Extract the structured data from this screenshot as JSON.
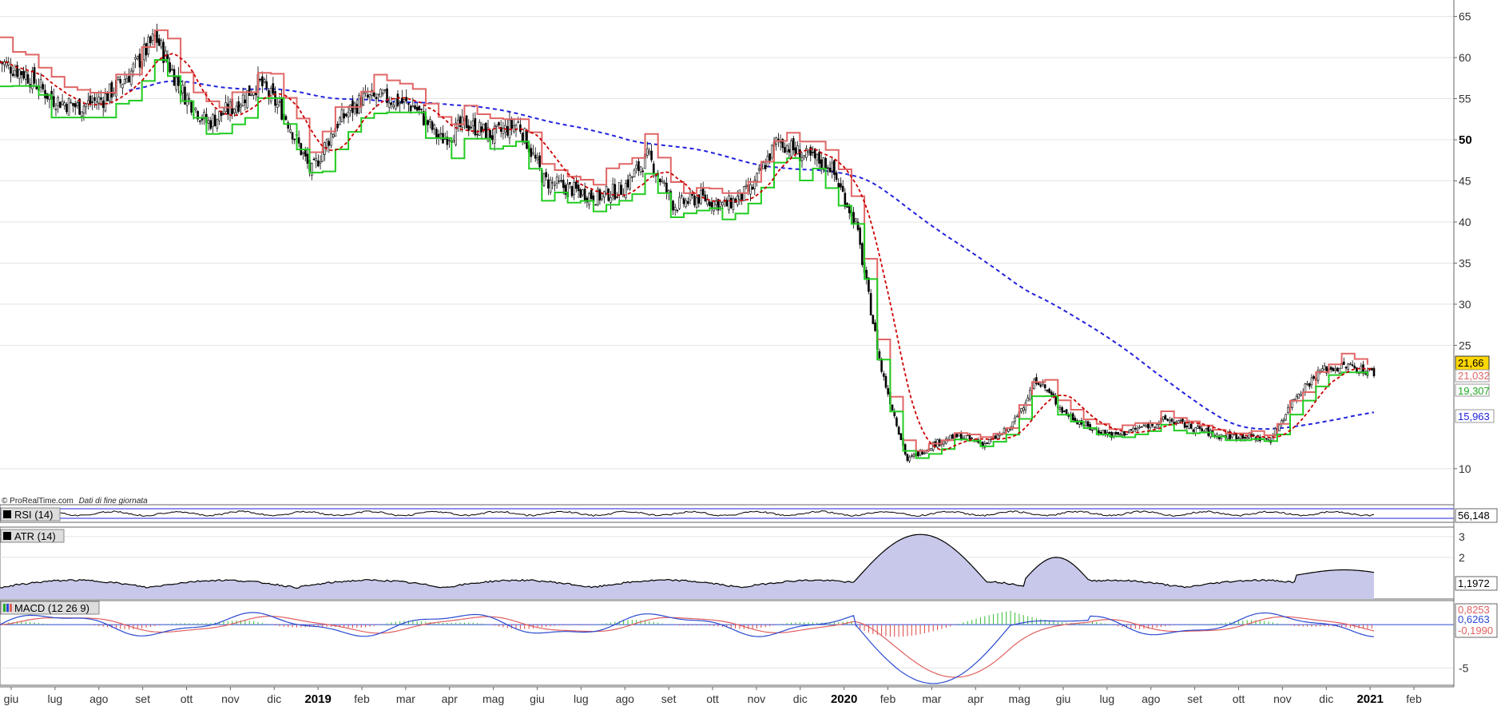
{
  "source": {
    "brand": "© ProRealTime.com",
    "note": "Dati di fine giornata"
  },
  "chart_data": [
    {
      "type": "candlestick",
      "panel": "price",
      "ylim": [
        6,
        67
      ],
      "yticks": [
        {
          "value": 65,
          "label": "65"
        },
        {
          "value": 60,
          "label": "60"
        },
        {
          "value": 55,
          "label": "55"
        },
        {
          "value": 50,
          "label": "50",
          "bold": true
        },
        {
          "value": 45,
          "label": "45"
        },
        {
          "value": 40,
          "label": "40"
        },
        {
          "value": 35,
          "label": "35"
        },
        {
          "value": 30,
          "label": "30"
        },
        {
          "value": 25,
          "label": "25"
        },
        {
          "value": 10,
          "label": "10"
        }
      ],
      "grid": true,
      "close_path": [
        [
          0,
          59.5
        ],
        [
          1,
          58
        ],
        [
          2,
          55
        ],
        [
          3,
          54
        ],
        [
          4,
          55
        ],
        [
          5,
          58
        ],
        [
          6,
          62.5
        ],
        [
          7,
          56
        ],
        [
          8,
          52
        ],
        [
          9,
          54
        ],
        [
          10,
          57
        ],
        [
          11,
          53
        ],
        [
          12,
          46
        ],
        [
          13,
          52
        ],
        [
          14,
          55
        ],
        [
          15,
          55
        ],
        [
          16,
          54
        ],
        [
          17,
          50
        ],
        [
          18,
          52
        ],
        [
          19,
          50.5
        ],
        [
          20,
          52
        ],
        [
          21,
          45
        ],
        [
          22,
          44
        ],
        [
          23,
          43
        ],
        [
          24,
          44
        ],
        [
          25,
          48
        ],
        [
          26,
          42
        ],
        [
          27,
          43
        ],
        [
          28,
          42
        ],
        [
          29,
          44
        ],
        [
          30,
          50
        ],
        [
          31,
          48
        ],
        [
          32,
          47
        ],
        [
          33,
          40
        ],
        [
          34,
          22
        ],
        [
          35,
          11
        ],
        [
          36,
          13
        ],
        [
          37,
          14
        ],
        [
          38,
          13
        ],
        [
          39,
          15
        ],
        [
          40,
          21
        ],
        [
          41,
          17
        ],
        [
          42,
          15
        ],
        [
          43,
          14
        ],
        [
          44,
          15
        ],
        [
          45,
          16
        ],
        [
          46,
          15
        ],
        [
          47,
          14
        ],
        [
          48,
          14
        ],
        [
          49,
          13.5
        ],
        [
          50,
          19
        ],
        [
          51,
          22
        ],
        [
          52,
          22.5
        ],
        [
          53,
          21.66
        ]
      ],
      "series": [
        {
          "name": "Price",
          "color": "#000000"
        },
        {
          "name": "Trailing stop (resistance)",
          "color": "#e06666",
          "last": 21.032,
          "last_label": "21,032"
        },
        {
          "name": "Moving average",
          "color": "#cc0000",
          "style": "dashed"
        },
        {
          "name": "Trailing stop (support)",
          "color": "#22cc22",
          "last": 19.307,
          "last_label": "19,307"
        },
        {
          "name": "Long moving average",
          "color": "#2222dd",
          "style": "dashed",
          "last": 15.963,
          "last_label": "15,963"
        }
      ],
      "last_price": 21.66,
      "last_price_label": "21,66"
    },
    {
      "type": "line",
      "panel": "rsi",
      "title": "RSI (14)",
      "last_label": "56,148"
    },
    {
      "type": "area",
      "panel": "atr",
      "title": "ATR (14)",
      "ylim": [
        0,
        3.3
      ],
      "yticks": [
        {
          "value": 3,
          "label": "3"
        },
        {
          "value": 2,
          "label": "2"
        }
      ],
      "last": 1.1972,
      "last_label": "1,1972",
      "peak": 3.1
    },
    {
      "type": "line",
      "panel": "macd",
      "title": "MACD (12 26 9)",
      "ylim": [
        -7,
        2.5
      ],
      "yticks": [
        {
          "value": -5,
          "label": "-5"
        }
      ],
      "last_labels": [
        "0,8253",
        "0,6263",
        "-0,1990"
      ],
      "min": -6.8
    }
  ],
  "x_axis": {
    "months": [
      {
        "label": "giu",
        "pos": 0
      },
      {
        "label": "lug",
        "pos": 1
      },
      {
        "label": "ago",
        "pos": 2
      },
      {
        "label": "set",
        "pos": 3
      },
      {
        "label": "ott",
        "pos": 4
      },
      {
        "label": "nov",
        "pos": 5
      },
      {
        "label": "dic",
        "pos": 6
      },
      {
        "label": "2019",
        "pos": 7,
        "bold": true
      },
      {
        "label": "feb",
        "pos": 8
      },
      {
        "label": "mar",
        "pos": 9
      },
      {
        "label": "apr",
        "pos": 10
      },
      {
        "label": "mag",
        "pos": 11
      },
      {
        "label": "giu",
        "pos": 12
      },
      {
        "label": "lug",
        "pos": 13
      },
      {
        "label": "ago",
        "pos": 14
      },
      {
        "label": "set",
        "pos": 15
      },
      {
        "label": "ott",
        "pos": 16
      },
      {
        "label": "nov",
        "pos": 17
      },
      {
        "label": "dic",
        "pos": 18
      },
      {
        "label": "2020",
        "pos": 19,
        "bold": true
      },
      {
        "label": "feb",
        "pos": 20
      },
      {
        "label": "mar",
        "pos": 21
      },
      {
        "label": "apr",
        "pos": 22
      },
      {
        "label": "mag",
        "pos": 23
      },
      {
        "label": "giu",
        "pos": 24
      },
      {
        "label": "lug",
        "pos": 25
      },
      {
        "label": "ago",
        "pos": 26
      },
      {
        "label": "set",
        "pos": 27
      },
      {
        "label": "ott",
        "pos": 28
      },
      {
        "label": "nov",
        "pos": 29
      },
      {
        "label": "dic",
        "pos": 30
      },
      {
        "label": "2021",
        "pos": 31,
        "bold": true
      },
      {
        "label": "feb",
        "pos": 32
      }
    ]
  }
}
